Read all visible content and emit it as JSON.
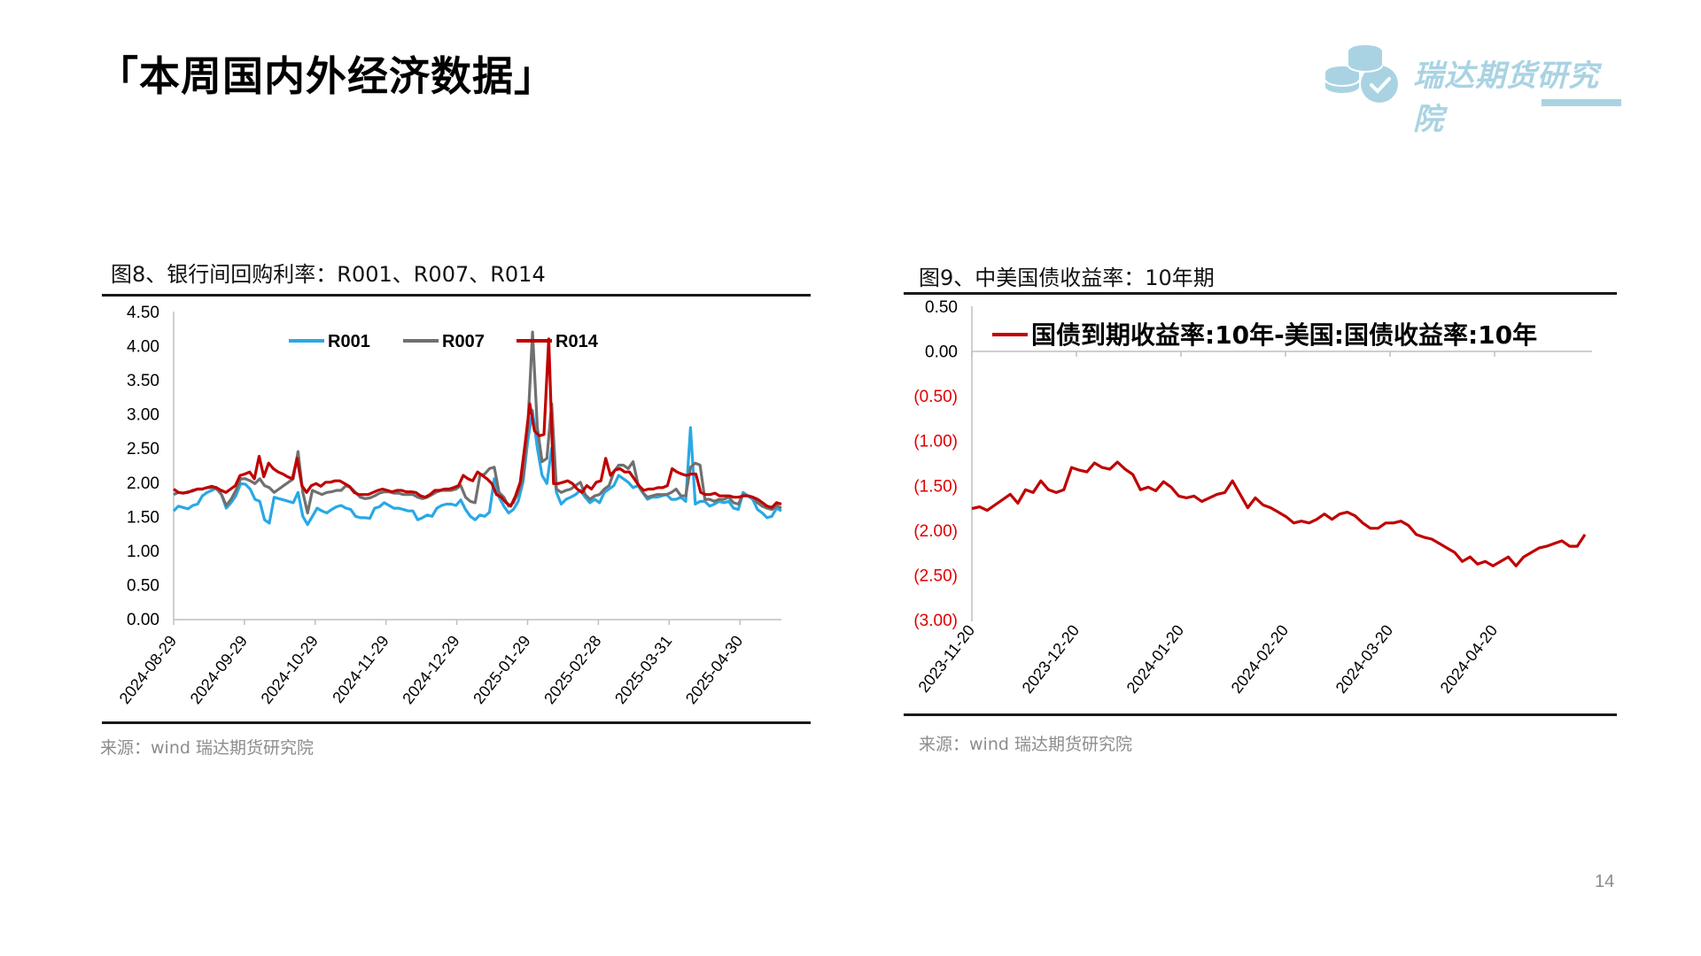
{
  "page": {
    "title": "「本周国内外经济数据」",
    "page_number": "14"
  },
  "logo": {
    "text": "瑞达期货研究院",
    "icon": "coins-check-icon",
    "color": "#a9d3e3"
  },
  "charts": {
    "left": {
      "title": "图8、银行间回购利率：R001、R007、R014",
      "source": "来源：wind   瑞达期货研究院"
    },
    "right": {
      "title": "图9、中美国债收益率：10年期",
      "source": "来源：wind   瑞达期货研究院"
    }
  },
  "chart_data": [
    {
      "type": "line",
      "title": "图8、银行间回购利率：R001、R007、R014",
      "xlabel": "",
      "ylabel": "",
      "ylim": [
        0,
        4.5
      ],
      "yticks": [
        "0.00",
        "0.50",
        "1.00",
        "1.50",
        "2.00",
        "2.50",
        "3.00",
        "3.50",
        "4.00",
        "4.50"
      ],
      "xticks": [
        "2024-08-29",
        "2024-09-29",
        "2024-10-29",
        "2024-11-29",
        "2024-12-29",
        "2025-01-29",
        "2025-02-28",
        "2025-03-31",
        "2025-04-30"
      ],
      "grid": false,
      "legend_position": "top-inside",
      "series": [
        {
          "name": "R001",
          "color": "#29a8e6",
          "values": [
            1.58,
            1.65,
            1.63,
            1.61,
            1.66,
            1.68,
            1.8,
            1.85,
            1.88,
            1.92,
            1.82,
            1.62,
            1.7,
            1.8,
            1.98,
            1.97,
            1.9,
            1.75,
            1.72,
            1.45,
            1.4,
            1.78,
            1.76,
            1.74,
            1.72,
            1.7,
            1.85,
            1.5,
            1.38,
            1.5,
            1.62,
            1.58,
            1.55,
            1.6,
            1.64,
            1.66,
            1.62,
            1.6,
            1.5,
            1.48,
            1.48,
            1.47,
            1.62,
            1.64,
            1.7,
            1.66,
            1.62,
            1.62,
            1.6,
            1.58,
            1.58,
            1.45,
            1.48,
            1.52,
            1.5,
            1.62,
            1.66,
            1.68,
            1.68,
            1.66,
            1.74,
            1.6,
            1.5,
            1.45,
            1.52,
            1.5,
            1.56,
            2.05,
            1.78,
            1.65,
            1.55,
            1.6,
            1.72,
            2.0,
            2.6,
            3.05,
            2.5,
            2.1,
            1.98,
            2.5,
            1.85,
            1.68,
            1.75,
            1.78,
            1.82,
            1.88,
            1.78,
            1.7,
            1.75,
            1.7,
            1.85,
            1.9,
            1.95,
            2.1,
            2.05,
            2.0,
            1.92,
            1.95,
            1.85,
            1.75,
            1.78,
            1.78,
            1.8,
            1.82,
            1.75,
            1.75,
            1.78,
            1.72,
            2.8,
            1.68,
            1.72,
            1.72,
            1.65,
            1.68,
            1.72,
            1.7,
            1.72,
            1.62,
            1.6,
            1.85,
            1.8,
            1.75,
            1.6,
            1.55,
            1.48,
            1.5,
            1.62,
            1.58
          ],
          "note": "approximate readings from plotted line"
        },
        {
          "name": "R007",
          "color": "#707070",
          "values": [
            1.82,
            1.85,
            1.84,
            1.86,
            1.87,
            1.9,
            1.9,
            1.92,
            1.92,
            1.9,
            1.82,
            1.66,
            1.75,
            1.88,
            2.05,
            2.05,
            2.02,
            1.98,
            2.05,
            1.95,
            1.92,
            1.85,
            1.9,
            1.95,
            2.0,
            2.05,
            2.45,
            1.85,
            1.55,
            1.88,
            1.85,
            1.82,
            1.85,
            1.86,
            1.88,
            1.88,
            1.95,
            1.92,
            1.85,
            1.78,
            1.76,
            1.77,
            1.8,
            1.84,
            1.86,
            1.86,
            1.84,
            1.84,
            1.82,
            1.82,
            1.82,
            1.78,
            1.76,
            1.78,
            1.82,
            1.86,
            1.88,
            1.88,
            1.88,
            1.9,
            1.95,
            1.78,
            1.72,
            1.7,
            2.1,
            2.12,
            2.2,
            2.22,
            1.85,
            1.78,
            1.65,
            1.7,
            1.85,
            2.05,
            2.8,
            4.2,
            2.8,
            2.3,
            2.35,
            3.15,
            1.9,
            1.85,
            1.88,
            1.9,
            1.95,
            2.0,
            1.82,
            1.75,
            1.8,
            1.82,
            1.9,
            1.95,
            2.15,
            2.25,
            2.25,
            2.2,
            2.3,
            1.98,
            1.85,
            1.78,
            1.8,
            1.82,
            1.82,
            1.82,
            1.85,
            1.9,
            1.8,
            1.8,
            2.22,
            2.28,
            2.25,
            1.75,
            1.75,
            1.72,
            1.75,
            1.75,
            1.78,
            1.7,
            1.68,
            1.82,
            1.8,
            1.78,
            1.7,
            1.65,
            1.62,
            1.6,
            1.66,
            1.62
          ],
          "note": "approximate readings from plotted line"
        },
        {
          "name": "R014",
          "color": "#c00000",
          "values": [
            1.9,
            1.85,
            1.84,
            1.85,
            1.88,
            1.9,
            1.9,
            1.92,
            1.94,
            1.92,
            1.88,
            1.85,
            1.9,
            1.95,
            2.1,
            2.12,
            2.15,
            2.05,
            2.38,
            2.08,
            2.28,
            2.2,
            2.15,
            2.12,
            2.08,
            2.05,
            2.35,
            1.95,
            1.85,
            1.95,
            1.98,
            1.94,
            2.0,
            2.0,
            2.02,
            2.02,
            1.98,
            1.94,
            1.85,
            1.82,
            1.82,
            1.82,
            1.85,
            1.88,
            1.9,
            1.88,
            1.86,
            1.88,
            1.88,
            1.86,
            1.86,
            1.85,
            1.8,
            1.78,
            1.82,
            1.88,
            1.88,
            1.9,
            1.9,
            1.92,
            1.95,
            2.1,
            2.05,
            2.02,
            2.15,
            2.1,
            2.05,
            1.98,
            1.82,
            1.78,
            1.7,
            1.65,
            1.8,
            2.0,
            2.55,
            3.15,
            2.75,
            2.68,
            2.7,
            4.1,
            1.98,
            1.98,
            2.0,
            2.02,
            1.98,
            1.9,
            1.85,
            1.95,
            1.9,
            2.0,
            2.02,
            2.35,
            2.1,
            2.18,
            2.2,
            2.15,
            2.15,
            2.05,
            1.95,
            1.88,
            1.9,
            1.9,
            1.92,
            1.92,
            1.95,
            2.2,
            2.15,
            2.12,
            2.1,
            2.12,
            2.12,
            1.85,
            1.82,
            1.82,
            1.84,
            1.8,
            1.8,
            1.8,
            1.78,
            1.78,
            1.8,
            1.8,
            1.78,
            1.75,
            1.7,
            1.65,
            1.63,
            1.7,
            1.68
          ],
          "note": "approximate readings from plotted line"
        }
      ]
    },
    {
      "type": "line",
      "title": "图9、中美国债收益率：10年期",
      "xlabel": "",
      "ylabel": "",
      "ylim": [
        -3.0,
        0.5
      ],
      "yticks": [
        "0.50",
        "0.00",
        "(0.50)",
        "(1.00)",
        "(1.50)",
        "(2.00)",
        "(2.50)",
        "(3.00)"
      ],
      "negative_label_color": "#e00000",
      "xticks": [
        "2023-11-20",
        "2023-12-20",
        "2024-01-20",
        "2024-02-20",
        "2024-03-20",
        "2024-04-20"
      ],
      "grid": false,
      "legend_position": "top-inside",
      "series": [
        {
          "name": "国债到期收益率:10年-美国:国债收益率:10年",
          "color": "#c00000",
          "values": [
            -1.76,
            -1.74,
            -1.78,
            -1.72,
            -1.66,
            -1.6,
            -1.7,
            -1.55,
            -1.58,
            -1.45,
            -1.55,
            -1.58,
            -1.55,
            -1.3,
            -1.33,
            -1.35,
            -1.25,
            -1.3,
            -1.32,
            -1.24,
            -1.32,
            -1.38,
            -1.55,
            -1.52,
            -1.56,
            -1.46,
            -1.52,
            -1.62,
            -1.64,
            -1.62,
            -1.68,
            -1.64,
            -1.6,
            -1.58,
            -1.45,
            -1.6,
            -1.75,
            -1.64,
            -1.72,
            -1.75,
            -1.8,
            -1.85,
            -1.92,
            -1.9,
            -1.92,
            -1.88,
            -1.82,
            -1.88,
            -1.82,
            -1.8,
            -1.84,
            -1.92,
            -1.98,
            -1.98,
            -1.92,
            -1.92,
            -1.9,
            -1.95,
            -2.05,
            -2.08,
            -2.1,
            -2.15,
            -2.2,
            -2.25,
            -2.35,
            -2.3,
            -2.38,
            -2.35,
            -2.4,
            -2.35,
            -2.3,
            -2.4,
            -2.3,
            -2.25,
            -2.2,
            -2.18,
            -2.15,
            -2.12,
            -2.18,
            -2.18,
            -2.05
          ],
          "note": "approximate readings from plotted line"
        }
      ]
    }
  ]
}
